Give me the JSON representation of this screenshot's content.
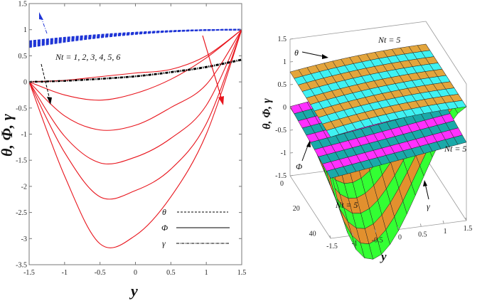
{
  "chart_data": [
    {
      "type": "line",
      "xlabel": "y",
      "ylabel": "θ, Φ, γ",
      "xlim": [
        -1.5,
        1.5
      ],
      "ylim": [
        -3.5,
        1.5
      ],
      "grid": false,
      "x_ticks": [
        "-1.5",
        "-1",
        "-0.5",
        "0",
        "0.5",
        "1",
        "1.5"
      ],
      "y_ticks": [
        "1.5",
        "1",
        "0.5",
        "0",
        "-0.5",
        "-1",
        "-1.5",
        "-2",
        "-2.5",
        "-3",
        "-3.5"
      ],
      "x": [
        -1.5,
        -1,
        -0.5,
        0,
        0.5,
        1,
        1.5
      ],
      "series": [
        {
          "group": "θ",
          "color": "#1f35d6",
          "style": "dashed",
          "values": [
            0.78,
            0.847,
            0.902,
            0.945,
            0.976,
            0.994,
            1
          ]
        },
        {
          "group": "θ",
          "color": "#1f35d6",
          "style": "dashed",
          "values": [
            0.755,
            0.83,
            0.891,
            0.939,
            0.973,
            0.993,
            1
          ]
        },
        {
          "group": "θ",
          "color": "#1f35d6",
          "style": "dashed",
          "values": [
            0.73,
            0.813,
            0.88,
            0.933,
            0.97,
            0.992,
            1
          ]
        },
        {
          "group": "θ",
          "color": "#1f35d6",
          "style": "dashed",
          "values": [
            0.71,
            0.799,
            0.871,
            0.928,
            0.968,
            0.992,
            1
          ]
        },
        {
          "group": "θ",
          "color": "#1f35d6",
          "style": "dashed",
          "values": [
            0.69,
            0.785,
            0.862,
            0.923,
            0.966,
            0.991,
            1
          ]
        },
        {
          "group": "θ",
          "color": "#1f35d6",
          "style": "dashed",
          "values": [
            0.665,
            0.767,
            0.851,
            0.916,
            0.963,
            0.991,
            1
          ]
        },
        {
          "group": "Φ",
          "color": "#e8141c",
          "style": "solid",
          "values": [
            0,
            0.03,
            0.1,
            0.17,
            0.24,
            0.5,
            1
          ]
        },
        {
          "group": "Φ",
          "color": "#e8141c",
          "style": "solid",
          "values": [
            0,
            -0.25,
            -0.35,
            -0.22,
            0.05,
            0.46,
            1
          ]
        },
        {
          "group": "Φ",
          "color": "#e8141c",
          "style": "solid",
          "values": [
            0,
            -0.65,
            -0.92,
            -0.83,
            -0.49,
            -0.05,
            1
          ]
        },
        {
          "group": "Φ",
          "color": "#e8141c",
          "style": "solid",
          "values": [
            0,
            -1.04,
            -1.55,
            -1.44,
            -1.08,
            -0.45,
            1
          ]
        },
        {
          "group": "Φ",
          "color": "#e8141c",
          "style": "solid",
          "values": [
            0,
            -1.35,
            -2.2,
            -2.08,
            -1.67,
            -0.8,
            1
          ]
        },
        {
          "group": "Φ",
          "color": "#e8141c",
          "style": "solid",
          "values": [
            0,
            -1.8,
            -3.1,
            -2.94,
            -2.2,
            -1.0,
            1
          ]
        },
        {
          "group": "γ",
          "color": "#000000",
          "style": "dashdot",
          "values": [
            0,
            0.02,
            0.06,
            0.11,
            0.19,
            0.29,
            0.43
          ]
        },
        {
          "group": "γ",
          "color": "#000000",
          "style": "dashdot",
          "values": [
            0,
            0.02,
            0.058,
            0.107,
            0.186,
            0.285,
            0.425
          ]
        },
        {
          "group": "γ",
          "color": "#000000",
          "style": "dashdot",
          "values": [
            0,
            0.019,
            0.056,
            0.104,
            0.182,
            0.28,
            0.42
          ]
        }
      ],
      "annotations": {
        "nt_label": "Nt = 1, 2, 3, 4, 5, 6"
      },
      "legend": {
        "placement": "bottom-right",
        "entries": [
          {
            "label": "θ",
            "style": "dashed"
          },
          {
            "label": "Φ",
            "style": "solid"
          },
          {
            "label": "γ",
            "style": "dashdot"
          }
        ]
      }
    },
    {
      "type": "surface",
      "xlabel": "y",
      "zlabel": "θ, Φ, γ",
      "x_ticks": [
        "-1.5",
        "-1",
        "-0.5",
        "0",
        "0.5",
        "1",
        "1.5"
      ],
      "depth_ticks": [
        "0",
        "20",
        "40"
      ],
      "z_ticks": [
        "1.5",
        "1",
        "0.5",
        "0",
        "-0.5",
        "-1",
        "-1.5"
      ],
      "surfaces": [
        {
          "name": "θ",
          "colors": [
            "#e3a53c",
            "#3ff2f2"
          ]
        },
        {
          "name": "Φ",
          "colors": [
            "#ff30ff",
            "#1aa9a9"
          ]
        },
        {
          "name": "γ",
          "colors": [
            "#e2902e",
            "#33ff33"
          ]
        }
      ],
      "annotations": {
        "theta": "θ",
        "phi": "Φ",
        "gamma": "γ",
        "nt_theta": "Nt = 5",
        "nt_phi": "Nt = 5",
        "nt_gamma": "Nt = 5"
      }
    }
  ]
}
